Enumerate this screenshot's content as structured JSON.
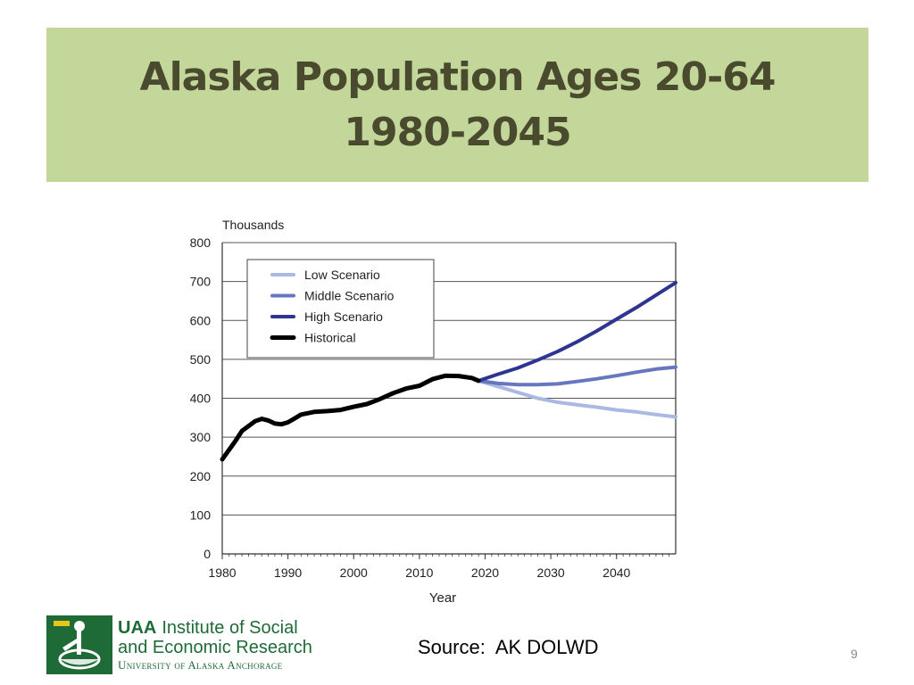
{
  "slide": {
    "title_line1": "Alaska Population Ages 20-64",
    "title_line2": "1980-2045",
    "source": "Source:  AK DOLWD",
    "page_number": "9"
  },
  "logo": {
    "uaa": "UAA",
    "line1": "Institute of Social",
    "line2": "and Economic Research",
    "line3": "University of Alaska Anchorage"
  },
  "colors": {
    "title_banner": "#c4d79b",
    "title_text": "#4a4a2e",
    "low": "#a9b9e3",
    "middle": "#6676bf",
    "high": "#2d3591",
    "historical": "#000000",
    "logo_green": "#1e6b37"
  },
  "chart_data": {
    "type": "line",
    "ylabel": "Thousands",
    "xlabel": "Year",
    "xlim": [
      1980,
      2049
    ],
    "ylim": [
      0,
      800
    ],
    "x_ticks": [
      1980,
      1990,
      2000,
      2010,
      2020,
      2030,
      2040
    ],
    "y_ticks": [
      0,
      100,
      200,
      300,
      400,
      500,
      600,
      700,
      800
    ],
    "grid": "horizontal",
    "legend_position": "top-left",
    "series": [
      {
        "name": "Low Scenario",
        "color_key": "low",
        "x": [
          2019,
          2022,
          2025,
          2028,
          2031,
          2034,
          2037,
          2040,
          2043,
          2046,
          2049
        ],
        "y": [
          445,
          430,
          415,
          400,
          390,
          383,
          377,
          370,
          365,
          358,
          352
        ]
      },
      {
        "name": "Middle Scenario",
        "color_key": "middle",
        "x": [
          2019,
          2022,
          2025,
          2028,
          2031,
          2034,
          2037,
          2040,
          2043,
          2046,
          2049
        ],
        "y": [
          445,
          438,
          435,
          435,
          437,
          443,
          450,
          458,
          467,
          475,
          480
        ]
      },
      {
        "name": "High Scenario",
        "color_key": "high",
        "x": [
          2019,
          2022,
          2025,
          2028,
          2031,
          2034,
          2037,
          2040,
          2043,
          2046,
          2049
        ],
        "y": [
          445,
          462,
          478,
          498,
          520,
          545,
          573,
          603,
          633,
          665,
          697
        ]
      },
      {
        "name": "Historical",
        "color_key": "historical",
        "x": [
          1980,
          1982,
          1983,
          1985,
          1986,
          1987,
          1988,
          1989,
          1990,
          1991,
          1992,
          1994,
          1996,
          1998,
          2000,
          2002,
          2004,
          2006,
          2008,
          2010,
          2012,
          2014,
          2016,
          2018,
          2019
        ],
        "y": [
          243,
          290,
          316,
          341,
          347,
          343,
          335,
          333,
          338,
          348,
          358,
          365,
          367,
          370,
          378,
          385,
          398,
          413,
          425,
          432,
          449,
          458,
          457,
          452,
          445
        ]
      }
    ]
  }
}
